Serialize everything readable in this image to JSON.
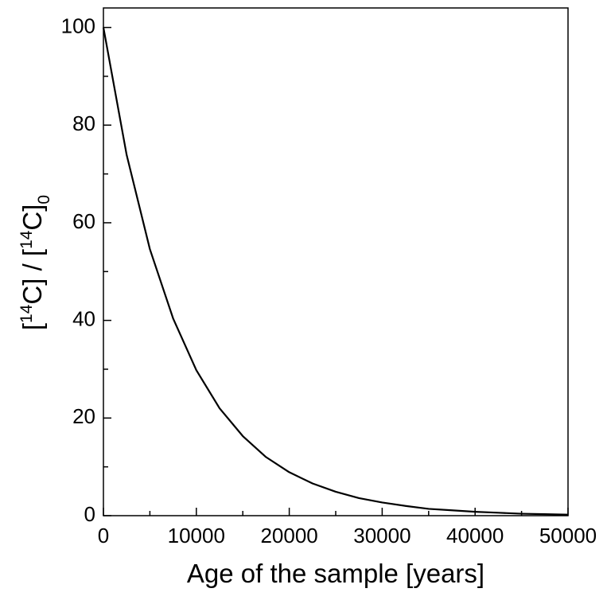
{
  "chart_data": {
    "type": "line",
    "xlabel": "Age of the sample [years]",
    "ylabel": [
      "[",
      "14",
      "C] / [",
      "14",
      "C]",
      "0"
    ],
    "x": [
      0,
      2500,
      5000,
      7500,
      10000,
      12500,
      15000,
      17500,
      20000,
      22500,
      25000,
      27500,
      30000,
      32500,
      35000,
      37500,
      40000,
      42500,
      45000,
      47500,
      50000
    ],
    "series": [
      {
        "color": "#000000",
        "values": [
          100,
          73.9,
          54.6,
          40.4,
          29.8,
          22.0,
          16.3,
          12.0,
          8.9,
          6.6,
          4.9,
          3.6,
          2.7,
          2.0,
          1.4,
          1.1,
          0.8,
          0.6,
          0.4,
          0.3,
          0.2
        ]
      }
    ],
    "xlim": [
      0,
      50000
    ],
    "xticks": [
      0,
      10000,
      20000,
      30000,
      40000,
      50000
    ],
    "xminorticks": [
      5000,
      15000,
      25000,
      35000,
      45000
    ],
    "ylim": [
      0,
      104
    ],
    "yticks": [
      0,
      20,
      40,
      60,
      80,
      100
    ],
    "yminorticks": [
      10,
      30,
      50,
      70,
      90
    ],
    "grid": false
  }
}
